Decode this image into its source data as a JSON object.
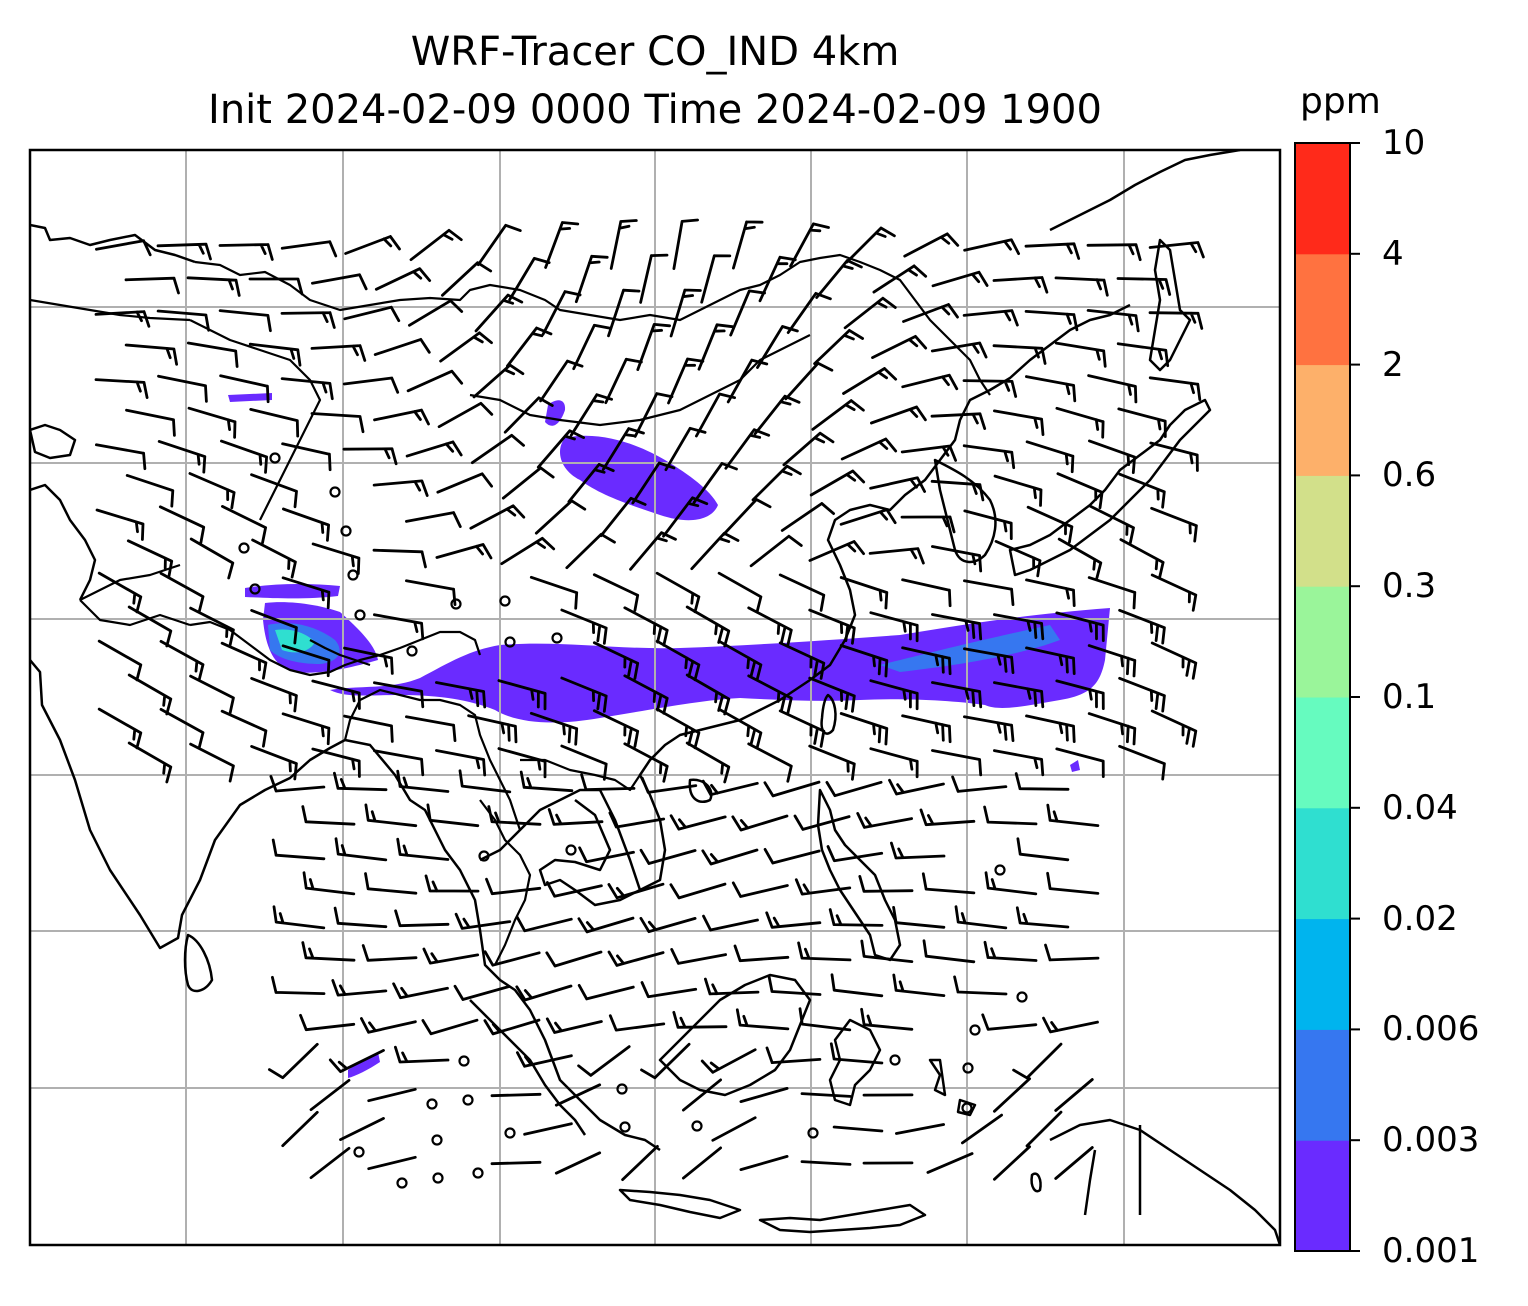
{
  "title": {
    "line1": "WRF-Tracer CO_IND 4km",
    "line2": "Init 2024-02-09 0000 Time 2024-02-09 1900"
  },
  "colorbar": {
    "unit": "ppm",
    "ticks": [
      "0.001",
      "0.003",
      "0.006",
      "0.02",
      "0.04",
      "0.1",
      "0.3",
      "0.6",
      "2",
      "4",
      "10"
    ],
    "colors": [
      "#6a2bff",
      "#3677f0",
      "#00b4ee",
      "#2fdfd0",
      "#66fbbf",
      "#9af59a",
      "#d2e08a",
      "#fdb06a",
      "#ff7240",
      "#ff2a1a"
    ]
  },
  "colors": {
    "coastline": "#000000",
    "gridline": "#b0b0b0",
    "barb": "#000000",
    "plume_main": "#6a2bff",
    "plume_core": "#3677f0",
    "plume_high": "#2fdfd0"
  },
  "layers": [
    "coastlines",
    "country-borders",
    "lat-lon-grid",
    "wind-barbs",
    "co-tracer-filled-contours"
  ]
}
